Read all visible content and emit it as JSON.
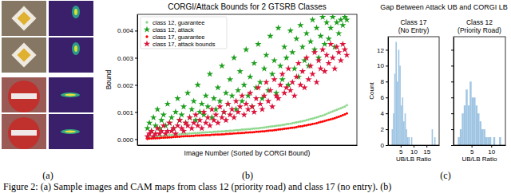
{
  "chart_data": [
    {
      "type": "scatter",
      "title": "CORGI/Attack Bounds for 2 GTSRB Classes",
      "x_label": "Image Number (Sorted by CORGI Bound)",
      "y_label": "Bound",
      "x": [
        0,
        1,
        2,
        3,
        4,
        5,
        6,
        7,
        8,
        9,
        10,
        11,
        12,
        13,
        14,
        15,
        16,
        17,
        18,
        19,
        20,
        21,
        22,
        23,
        24,
        25,
        26,
        27,
        28,
        29,
        30,
        31,
        32,
        33,
        34,
        35,
        36,
        37,
        38,
        39,
        40,
        41,
        42,
        43,
        44,
        45,
        46,
        47,
        48,
        49,
        50,
        51,
        52,
        53,
        54,
        55,
        56,
        57,
        58,
        59,
        60,
        61,
        62,
        63,
        64,
        65,
        66,
        67,
        68,
        69,
        70,
        71,
        72,
        73,
        74,
        75,
        76,
        77,
        78,
        79,
        80,
        81,
        82,
        83,
        84,
        85,
        86,
        87,
        88,
        89,
        90,
        91,
        92,
        93,
        94,
        95,
        96,
        97,
        98,
        99
      ],
      "xlim": [
        -5,
        104
      ],
      "ylim": [
        -0.00022,
        0.0046
      ],
      "yticks": [
        {
          "value": 0,
          "label": "0.000"
        },
        {
          "value": 0.001,
          "label": "0.001"
        },
        {
          "value": 0.002,
          "label": "0.002"
        },
        {
          "value": 0.003,
          "label": "0.003"
        },
        {
          "value": 0.004,
          "label": "0.004"
        }
      ],
      "tick_labels": "y",
      "legend": "upper left",
      "series": [
        {
          "name": "class 12, guarantee",
          "color": "#8fd88f",
          "marker": "point",
          "values": [
            5e-05,
            6e-05,
            7e-05,
            8e-05,
            9e-05,
            0.0001,
            0.00011,
            0.00012,
            0.00012,
            0.00013,
            0.00014,
            0.00015,
            0.00015,
            0.00016,
            0.00017,
            0.00017,
            0.00018,
            0.00019,
            0.00019,
            0.0002,
            0.0002,
            0.00021,
            0.00021,
            0.00022,
            0.00022,
            0.00023,
            0.00023,
            0.00024,
            0.00024,
            0.00025,
            0.00025,
            0.00026,
            0.00026,
            0.00027,
            0.00027,
            0.00028,
            0.00028,
            0.00029,
            0.00029,
            0.0003,
            0.0003,
            0.00031,
            0.00031,
            0.00032,
            0.00033,
            0.00033,
            0.00034,
            0.00035,
            0.00035,
            0.00036,
            0.00037,
            0.00037,
            0.00038,
            0.00039,
            0.0004,
            0.0004,
            0.00041,
            0.00042,
            0.00043,
            0.00044,
            0.00045,
            0.00046,
            0.00047,
            0.00048,
            0.00049,
            0.0005,
            0.00051,
            0.00052,
            0.00053,
            0.00055,
            0.00056,
            0.00057,
            0.00059,
            0.0006,
            0.00062,
            0.00063,
            0.00065,
            0.00066,
            0.00068,
            0.0007,
            0.00072,
            0.00074,
            0.00076,
            0.00078,
            0.0008,
            0.00082,
            0.00085,
            0.00087,
            0.0009,
            0.00093,
            0.00096,
            0.00099,
            0.00102,
            0.00105,
            0.00108,
            0.00111,
            0.00114,
            0.00117,
            0.0012,
            0.00125
          ]
        },
        {
          "name": "class 12, attack",
          "color": "#1f9f1f",
          "marker": "star",
          "values": [
            0.0004,
            0.0006,
            0.0003,
            0.0008,
            0.0005,
            0.0011,
            0.0004,
            0.0007,
            0.0009,
            0.0005,
            0.0013,
            0.0006,
            0.0008,
            0.0004,
            0.001,
            0.0015,
            0.0007,
            0.0009,
            0.0012,
            0.0006,
            0.0017,
            0.0008,
            0.0011,
            0.0014,
            0.0007,
            0.002,
            0.001,
            0.0013,
            0.0009,
            0.0016,
            0.0012,
            0.0024,
            0.0008,
            0.0015,
            0.0011,
            0.0019,
            0.0014,
            0.0027,
            0.001,
            0.0017,
            0.0013,
            0.0022,
            0.0016,
            0.003,
            0.0011,
            0.0018,
            0.0025,
            0.0014,
            0.002,
            0.0033,
            0.0016,
            0.0023,
            0.0012,
            0.0028,
            0.0019,
            0.0035,
            0.0021,
            0.0015,
            0.0026,
            0.0031,
            0.0018,
            0.0038,
            0.0024,
            0.0029,
            0.0017,
            0.0041,
            0.0027,
            0.0022,
            0.0034,
            0.003,
            0.002,
            0.004,
            0.0032,
            0.0026,
            0.0037,
            0.0023,
            0.0042,
            0.0034,
            0.0029,
            0.0039,
            0.0027,
            0.0036,
            0.0044,
            0.0033,
            0.0041,
            0.003,
            0.0038,
            0.0045,
            0.0035,
            0.0043,
            0.0037,
            0.0041,
            0.0045,
            0.0034,
            0.0043,
            0.0039,
            0.0044,
            0.0042,
            0.0045,
            0.0044
          ]
        },
        {
          "name": "class 17, guarantee",
          "color": "#ff0000",
          "marker": "point",
          "values": [
            1e-05,
            2e-05,
            2e-05,
            3e-05,
            3e-05,
            4e-05,
            4e-05,
            5e-05,
            5e-05,
            6e-05,
            6e-05,
            7e-05,
            7e-05,
            8e-05,
            8e-05,
            9e-05,
            9e-05,
            0.0001,
            0.0001,
            0.00011,
            0.00011,
            0.00011,
            0.00012,
            0.00012,
            0.00013,
            0.00013,
            0.00013,
            0.00014,
            0.00014,
            0.00015,
            0.00015,
            0.00015,
            0.00016,
            0.00016,
            0.00017,
            0.00017,
            0.00017,
            0.00018,
            0.00018,
            0.00019,
            0.00019,
            0.0002,
            0.0002,
            0.00021,
            0.00021,
            0.00022,
            0.00022,
            0.00023,
            0.00023,
            0.00024,
            0.00024,
            0.00025,
            0.00025,
            0.00026,
            0.00027,
            0.00027,
            0.00028,
            0.00029,
            0.00029,
            0.0003,
            0.00031,
            0.00032,
            0.00032,
            0.00033,
            0.00034,
            0.00035,
            0.00036,
            0.00037,
            0.00038,
            0.00039,
            0.0004,
            0.00041,
            0.00042,
            0.00043,
            0.00044,
            0.00046,
            0.00047,
            0.00048,
            0.0005,
            0.00051,
            0.00053,
            0.00054,
            0.00056,
            0.00057,
            0.00059,
            0.00061,
            0.00063,
            0.00065,
            0.00067,
            0.00069,
            0.00071,
            0.00073,
            0.00075,
            0.00077,
            0.0008,
            0.00082,
            0.00085,
            0.00088,
            0.00091,
            0.00095
          ]
        },
        {
          "name": "class 17, attack bounds",
          "color": "#dc143c",
          "marker": "star",
          "values": [
            0.0001,
            0.0002,
            0.0003,
            0.0001,
            0.0002,
            0.0004,
            0.0002,
            0.0003,
            0.0005,
            0.0002,
            0.0003,
            0.0006,
            0.0003,
            0.0004,
            0.0002,
            0.0005,
            0.0007,
            0.0004,
            0.0003,
            0.0006,
            0.0005,
            0.0008,
            0.0004,
            0.0006,
            0.0009,
            0.0005,
            0.0007,
            0.0004,
            0.001,
            0.0006,
            0.0008,
            0.0005,
            0.0011,
            0.0007,
            0.0009,
            0.0006,
            0.0012,
            0.0008,
            0.001,
            0.0007,
            0.0013,
            0.0009,
            0.0011,
            0.0008,
            0.0014,
            0.001,
            0.0012,
            0.0016,
            0.0009,
            0.0013,
            0.0011,
            0.0017,
            0.0012,
            0.001,
            0.0015,
            0.0019,
            0.0013,
            0.0011,
            0.0016,
            0.0021,
            0.0014,
            0.0018,
            0.0012,
            0.0022,
            0.0016,
            0.0015,
            0.002,
            0.0024,
            0.0017,
            0.0019,
            0.0026,
            0.0018,
            0.0021,
            0.0016,
            0.0023,
            0.0028,
            0.002,
            0.0025,
            0.0019,
            0.003,
            0.0022,
            0.0027,
            0.0024,
            0.0032,
            0.0021,
            0.0029,
            0.0026,
            0.0033,
            0.0025,
            0.0031,
            0.0028,
            0.0035,
            0.003,
            0.0026,
            0.0034,
            0.0032,
            0.0029,
            0.0035,
            0.0033,
            0.0031
          ]
        }
      ]
    },
    {
      "type": "histogram",
      "title": "Class 17\n(No Entry)",
      "x_label": "UB/LB Ratio",
      "y_label": "Count",
      "color": "#9fc5e3",
      "bins": [
        1,
        1.5,
        2,
        2.5,
        3,
        3.5,
        4,
        4.5,
        5,
        5.5,
        6,
        6.5,
        7,
        7.5,
        8,
        8.5,
        9,
        9.5,
        10,
        10.5,
        11,
        11.5,
        12,
        12.5,
        13,
        13.5,
        14,
        14.5,
        15,
        15.5,
        16,
        16.5,
        17,
        17.5,
        18,
        18.5,
        19
      ],
      "counts": [
        0,
        2,
        4,
        9,
        13,
        8,
        12,
        10,
        5,
        6,
        3,
        4,
        2,
        1,
        1,
        0,
        1,
        0,
        0,
        0,
        0,
        0,
        0,
        0,
        0,
        0,
        0,
        0,
        0,
        0,
        0,
        0,
        2,
        0,
        1,
        0
      ],
      "xlim": [
        0.1,
        19.9
      ],
      "ylim": [
        0,
        13.65
      ],
      "xticks": [
        5,
        10,
        15
      ],
      "yticks": [
        0,
        2,
        4,
        6,
        8,
        10,
        12
      ]
    },
    {
      "type": "histogram",
      "title": "Class 12\n(Priority Road)",
      "x_label": "UB/LB Ratio",
      "color": "#9fc5e3",
      "bins": [
        1,
        1.5,
        2,
        2.5,
        3,
        3.5,
        4,
        4.5,
        5,
        5.5,
        6,
        6.5,
        7,
        7.5,
        8,
        8.5,
        9,
        9.5,
        10,
        10.5,
        11,
        11.5,
        12,
        12.5,
        13
      ],
      "counts": [
        0,
        1,
        2,
        4,
        5,
        7,
        5,
        8,
        6,
        6,
        5,
        4,
        3,
        2,
        2,
        1,
        1,
        1,
        0,
        1,
        0,
        0,
        1,
        0
      ],
      "xlim": [
        0.4,
        13.6
      ],
      "ylim": [
        0,
        13.65
      ],
      "xticks": [
        5,
        10
      ],
      "yticks": [
        0,
        2,
        4,
        6,
        8,
        10,
        12
      ],
      "tick_labels": "x"
    }
  ],
  "figure": {
    "title": "Gap Between Attack UB and CORGI LB",
    "panel_labels": [
      "(a)",
      "(b)",
      "(c)"
    ],
    "caption": "Figure 2: (a) Sample images and CAM maps from class 12 (priority road) and class 17 (no entry). (b)"
  }
}
